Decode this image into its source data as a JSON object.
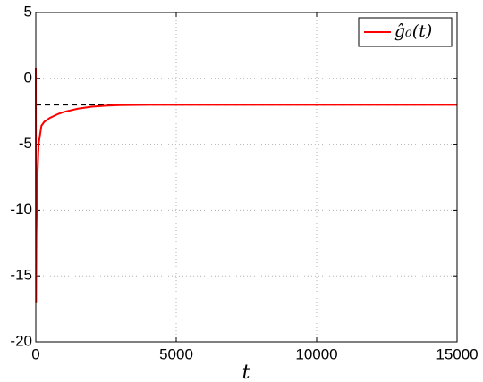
{
  "chart_data": {
    "type": "line",
    "x_label": "t",
    "x": [
      0,
      10,
      20,
      50,
      100,
      200,
      300,
      500,
      800,
      1000,
      1500,
      2000,
      2500,
      3000,
      4000,
      6000,
      10000,
      15000
    ],
    "series": [
      {
        "name": "ĝ₀(t)",
        "color": "#ff0000",
        "values": [
          0.8,
          -17,
          -12,
          -8,
          -5,
          -3.6,
          -3.3,
          -3.0,
          -2.7,
          -2.55,
          -2.3,
          -2.15,
          -2.07,
          -2.03,
          -2.0,
          -2.0,
          -2.0,
          -2.0
        ]
      }
    ],
    "hline": {
      "value": -2,
      "color": "#000000",
      "style": "dashed"
    },
    "xlim": [
      0,
      15000
    ],
    "xticks": [
      0,
      5000,
      10000,
      15000
    ],
    "ylim": [
      -20,
      5
    ],
    "yticks": [
      -20,
      -15,
      -10,
      -5,
      0,
      5
    ],
    "grid": true,
    "legend": "upper right"
  }
}
